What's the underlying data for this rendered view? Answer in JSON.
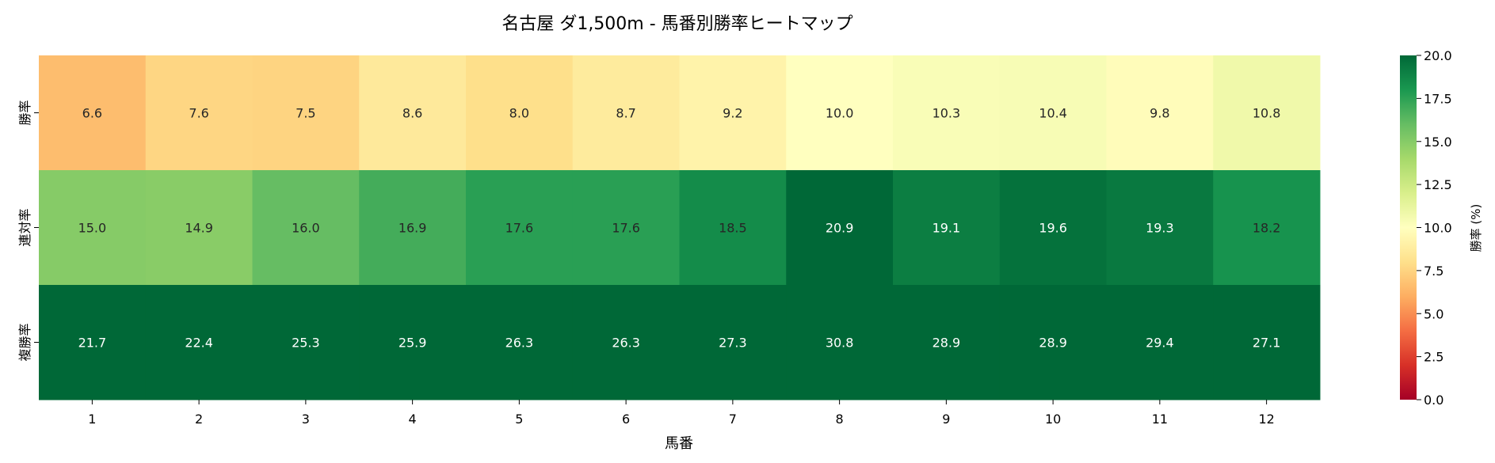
{
  "chart_data": {
    "type": "heatmap",
    "title": "名古屋 ダ1,500m - 馬番別勝率ヒートマップ",
    "xlabel": "馬番",
    "ylabel": "",
    "colorbar_label": "勝率 (%)",
    "colormap": "RdYlGn",
    "vmin": 0,
    "vmax": 20,
    "colorbar_ticks": [
      "0.0",
      "2.5",
      "5.0",
      "7.5",
      "10.0",
      "12.5",
      "15.0",
      "17.5",
      "20.0"
    ],
    "x_categories": [
      "1",
      "2",
      "3",
      "4",
      "5",
      "6",
      "7",
      "8",
      "9",
      "10",
      "11",
      "12"
    ],
    "y_categories": [
      "勝率",
      "連対率",
      "複勝率"
    ],
    "values": [
      [
        6.6,
        7.6,
        7.5,
        8.6,
        8.0,
        8.7,
        9.2,
        10.0,
        10.3,
        10.4,
        9.8,
        10.8
      ],
      [
        15.0,
        14.9,
        16.0,
        16.9,
        17.6,
        17.6,
        18.5,
        20.9,
        19.1,
        19.6,
        19.3,
        18.2
      ],
      [
        21.7,
        22.4,
        25.3,
        25.9,
        26.3,
        26.3,
        27.3,
        30.8,
        28.9,
        28.9,
        29.4,
        27.1
      ]
    ],
    "annotation_format": "0.1f"
  }
}
